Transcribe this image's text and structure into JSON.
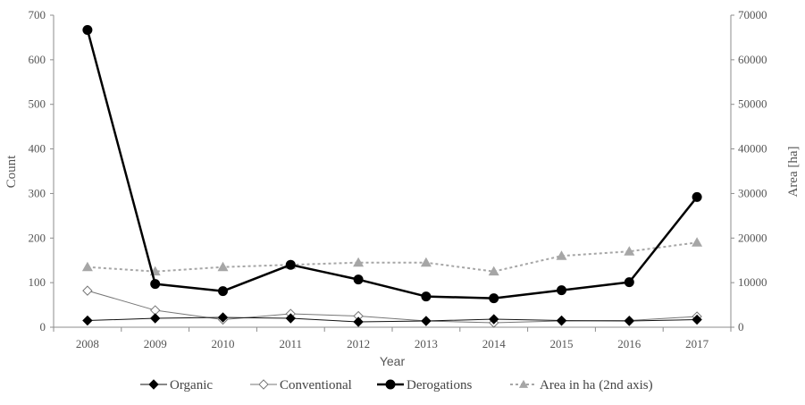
{
  "chart_data": {
    "type": "line",
    "title": "",
    "xlabel": "Year",
    "ylabel": "Count",
    "y2label": "Area [ha]",
    "categories": [
      "2008",
      "2009",
      "2010",
      "2011",
      "2012",
      "2013",
      "2014",
      "2015",
      "2016",
      "2017"
    ],
    "ylim": [
      0,
      700
    ],
    "yticks": [
      "0",
      "100",
      "200",
      "300",
      "400",
      "500",
      "600",
      "700"
    ],
    "y2lim": [
      0,
      70000
    ],
    "y2ticks": [
      "0",
      "10000",
      "20000",
      "30000",
      "40000",
      "50000",
      "60000",
      "70000"
    ],
    "grid": false,
    "legend_position": "bottom",
    "series": [
      {
        "name": "Organic",
        "axis": "left",
        "color": "#111111",
        "line_style": "solid",
        "marker": "filled-diamond",
        "values": [
          15,
          20,
          22,
          20,
          12,
          14,
          18,
          15,
          14,
          17
        ]
      },
      {
        "name": "Conventional",
        "axis": "left",
        "color": "#777777",
        "line_style": "solid",
        "marker": "open-diamond",
        "values": [
          82,
          38,
          17,
          30,
          25,
          14,
          10,
          14,
          15,
          24
        ]
      },
      {
        "name": "Derogations",
        "axis": "left",
        "color": "#000000",
        "line_style": "solid-thick",
        "marker": "filled-circle",
        "values": [
          667,
          97,
          81,
          140,
          107,
          69,
          65,
          83,
          101,
          292
        ]
      },
      {
        "name": "Area in ha (2nd axis)",
        "axis": "right",
        "color": "#a6a6a6",
        "line_style": "dotted",
        "marker": "filled-triangle",
        "values": [
          13500,
          12500,
          13500,
          14000,
          14500,
          14500,
          12500,
          16000,
          17000,
          19000
        ]
      }
    ]
  }
}
